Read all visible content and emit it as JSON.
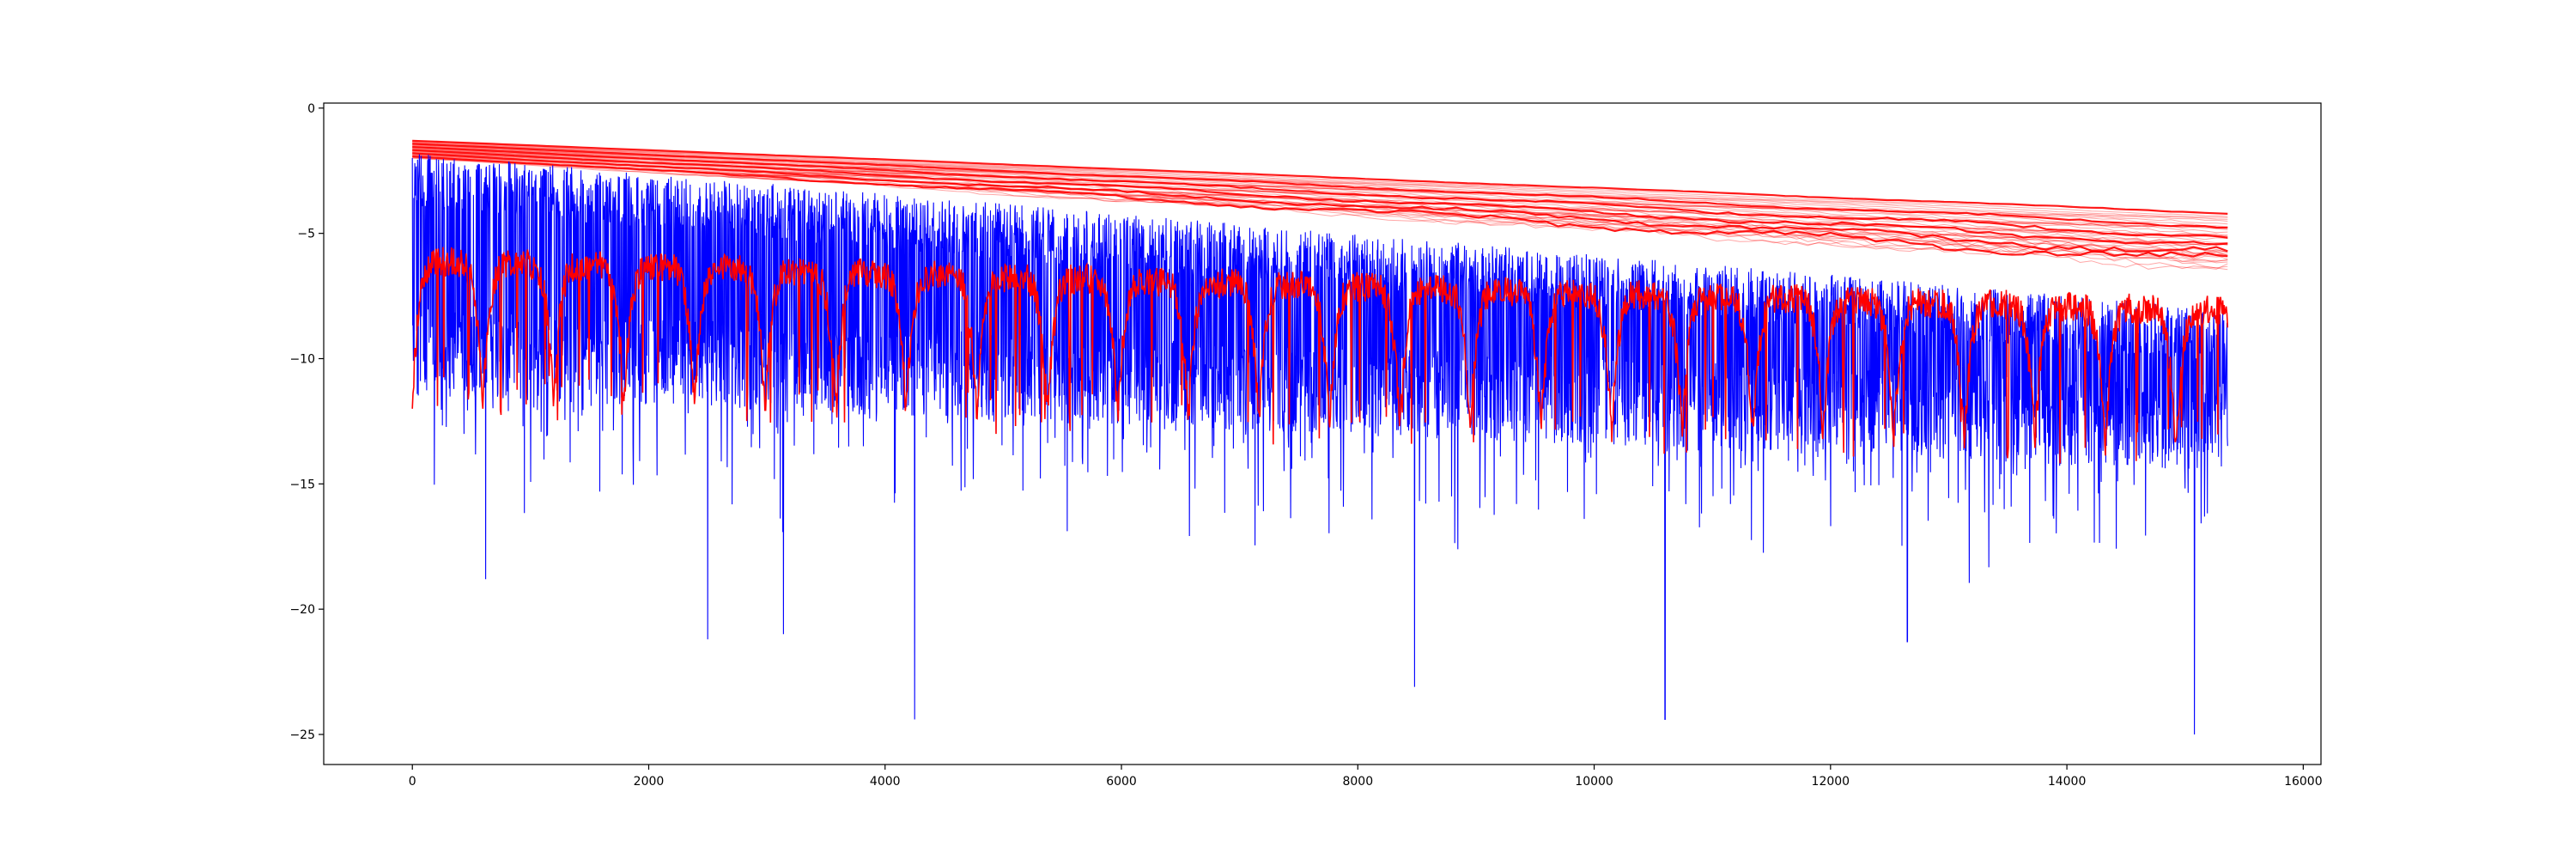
{
  "chart_data": {
    "type": "line",
    "title": "",
    "xlabel": "",
    "ylabel": "",
    "xlim": [
      -750,
      16150
    ],
    "ylim": [
      -26.2,
      0.2
    ],
    "x_ticks": [
      0,
      2000,
      4000,
      6000,
      8000,
      10000,
      12000,
      14000,
      16000
    ],
    "x_tick_labels": [
      "0",
      "2000",
      "4000",
      "6000",
      "8000",
      "10000",
      "12000",
      "14000",
      "16000"
    ],
    "y_ticks": [
      0,
      -5,
      -10,
      -15,
      -20,
      -25
    ],
    "y_tick_labels": [
      "0",
      "−5",
      "−10",
      "−15",
      "−20",
      "−25"
    ],
    "grid": false,
    "legend": "none",
    "n_points": 15360,
    "series": [
      {
        "color": "#ff0000",
        "description_key": "red-smooth-envelope-curves",
        "x": [
          0,
          15360
        ],
        "top_curve_y": [
          -1.3,
          -4.2
        ],
        "bottom_curve_y": [
          -2.0,
          -6.3
        ]
      },
      {
        "color": "#0000ff",
        "description_key": "blue-noisy-series",
        "x": [
          0,
          15360
        ],
        "upper_y": [
          -1.8,
          -8.0
        ],
        "lower_y": [
          -11.5,
          -14.5
        ],
        "notable_minima": [
          {
            "x": 620,
            "y": -18.8
          },
          {
            "x": 2500,
            "y": -21.2
          },
          {
            "x": 3140,
            "y": -21.0
          },
          {
            "x": 4250,
            "y": -24.4
          },
          {
            "x": 8480,
            "y": -23.1
          },
          {
            "x": 10600,
            "y": -24.4
          },
          {
            "x": 12650,
            "y": -21.3
          },
          {
            "x": 15080,
            "y": -25.0
          }
        ]
      },
      {
        "color": "#ff0000",
        "description_key": "red-oscillating-series",
        "x": [
          0,
          15360
        ],
        "upper_y": [
          -5.5,
          -7.5
        ],
        "lower_y": [
          -10.5,
          -12.5
        ]
      }
    ]
  },
  "colors": {
    "red": "#ff0000",
    "blue": "#0000ff",
    "axis": "#000000"
  }
}
